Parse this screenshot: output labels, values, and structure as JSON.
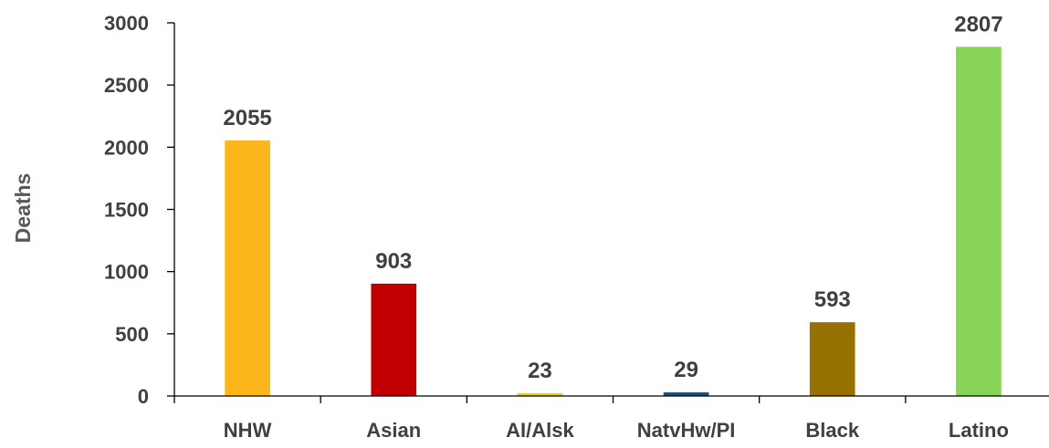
{
  "chart_data": {
    "type": "bar",
    "title": "",
    "xlabel": "",
    "ylabel": "Deaths",
    "categories": [
      "NHW",
      "Asian",
      "AI/Alsk",
      "NatvHw/PI",
      "Black",
      "Latino"
    ],
    "values": [
      2055,
      903,
      23,
      29,
      593,
      2807
    ],
    "value_labels": [
      "2055",
      "903",
      "23",
      "29",
      "593",
      "2807"
    ],
    "colors": [
      "#FDB71C",
      "#C00000",
      "#E6D21E",
      "#1F4E79",
      "#967000",
      "#87D457"
    ],
    "ylim": [
      0,
      3000
    ],
    "yticks": [
      0,
      500,
      1000,
      1500,
      2000,
      2500,
      3000
    ],
    "grid": false,
    "legend": "none"
  }
}
